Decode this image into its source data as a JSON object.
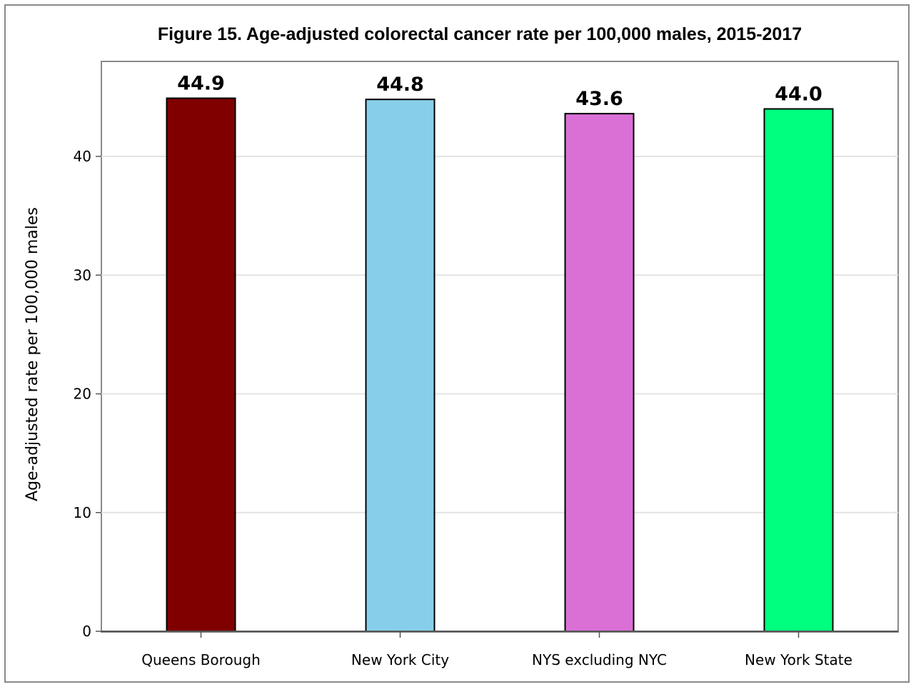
{
  "chart_data": {
    "type": "bar",
    "title": "Figure 15. Age-adjusted colorectal cancer rate per 100,000 males, 2015-2017",
    "xlabel": "",
    "ylabel": "Age-adjusted rate per 100,000 males",
    "categories": [
      "Queens Borough",
      "New York City",
      "NYS excluding NYC",
      "New York State"
    ],
    "values": [
      44.9,
      44.8,
      43.6,
      44.0
    ],
    "data_labels": [
      "44.9",
      "44.8",
      "43.6",
      "44.0"
    ],
    "colors": [
      "#800000",
      "#87CEEB",
      "#DA70D6",
      "#00FF7F"
    ],
    "ylim": [
      0,
      48
    ],
    "yticks": [
      0,
      10,
      20,
      30,
      40
    ],
    "grid": true,
    "legend": "none"
  }
}
